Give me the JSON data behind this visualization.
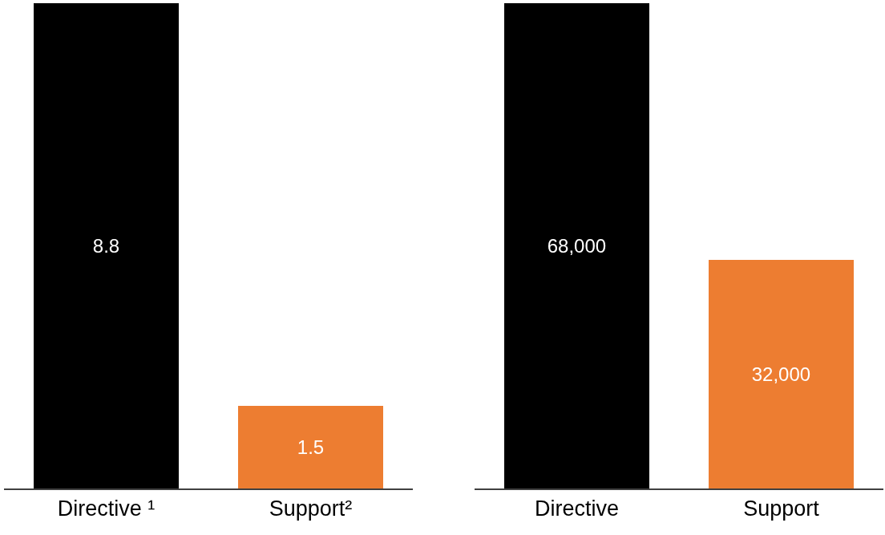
{
  "chart_data": [
    {
      "type": "bar",
      "categories": [
        "Directive ¹",
        "Support²"
      ],
      "values": [
        8.8,
        1.5
      ],
      "colors": [
        "#000000",
        "#ed7d31"
      ],
      "value_labels": [
        "8.8",
        "1.5"
      ],
      "ylim": [
        0,
        8.8
      ],
      "tick_labels": "x"
    },
    {
      "type": "bar",
      "categories": [
        "Directive",
        "Support"
      ],
      "values": [
        68000,
        32000
      ],
      "colors": [
        "#000000",
        "#ed7d31"
      ],
      "value_labels": [
        "68,000",
        "32,000"
      ],
      "ylim": [
        0,
        68000
      ],
      "tick_labels": "x"
    }
  ]
}
